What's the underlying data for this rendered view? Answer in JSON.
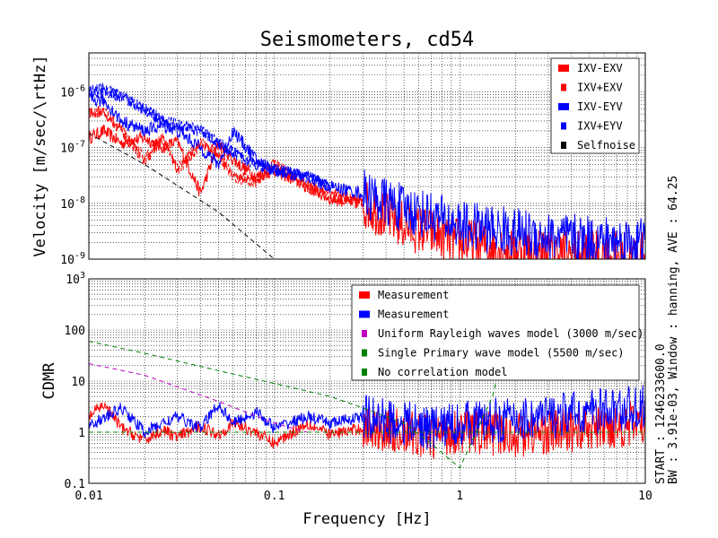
{
  "chart_data": [
    {
      "type": "line",
      "title": "Seismometers, cd54",
      "xlabel": "",
      "ylabel": "Velocity [m/sec/\\rtHz]",
      "xscale": "log",
      "yscale": "log",
      "xlim": [
        0.01,
        10
      ],
      "ylim": [
        1e-09,
        5e-06
      ],
      "y_ticks": [
        "10^-9",
        "10^-8",
        "10^-7",
        "10^-6"
      ],
      "grid": true,
      "legend_position": "top-right",
      "series": [
        {
          "name": "IXV-EXV",
          "color": "#ff0000",
          "style": "solid",
          "x": [
            0.01,
            0.012,
            0.015,
            0.02,
            0.025,
            0.03,
            0.04,
            0.05,
            0.06,
            0.08,
            0.1,
            0.15,
            0.2,
            0.3,
            0.5,
            0.7,
            1,
            2,
            3,
            5,
            10
          ],
          "values": [
            1.5e-07,
            2e-07,
            1.2e-07,
            1.5e-07,
            1e-07,
            1.3e-07,
            1.5e-08,
            1.2e-07,
            6e-08,
            3e-08,
            4e-08,
            2e-08,
            1.2e-08,
            1e-08,
            4e-09,
            3e-09,
            2e-09,
            1.5e-09,
            1.3e-09,
            1.2e-09,
            1.1e-09
          ]
        },
        {
          "name": "IXV+EXV",
          "color": "#ff0000",
          "style": "dashed",
          "x": [
            0.01,
            0.012,
            0.015,
            0.02,
            0.025,
            0.03,
            0.04,
            0.05,
            0.06,
            0.08,
            0.1,
            0.15,
            0.2,
            0.3
          ],
          "values": [
            4e-07,
            4.5e-07,
            2e-07,
            6e-08,
            1.5e-07,
            4e-08,
            1.2e-07,
            8e-08,
            3e-08,
            2.5e-08,
            5e-08,
            2e-08,
            1.5e-08,
            1e-08
          ]
        },
        {
          "name": "IXV-EYV",
          "color": "#0000ff",
          "style": "solid",
          "x": [
            0.01,
            0.012,
            0.015,
            0.02,
            0.025,
            0.03,
            0.04,
            0.05,
            0.06,
            0.08,
            0.1,
            0.15,
            0.2,
            0.3,
            0.5,
            0.7,
            1,
            2,
            3,
            5,
            10
          ],
          "values": [
            7e-07,
            7e-07,
            3e-07,
            2e-07,
            2.5e-07,
            2e-07,
            1e-07,
            5e-08,
            2e-07,
            6e-08,
            4e-08,
            3e-08,
            2e-08,
            1.5e-08,
            8e-09,
            6e-09,
            4e-09,
            3e-09,
            2.5e-09,
            2.2e-09,
            2e-09
          ]
        },
        {
          "name": "IXV+EYV",
          "color": "#0000ff",
          "style": "dashed",
          "x": [
            0.01,
            0.012,
            0.015,
            0.02,
            0.025,
            0.03,
            0.04,
            0.05,
            0.06,
            0.08,
            0.1,
            0.15,
            0.2
          ],
          "values": [
            1e-06,
            1.1e-06,
            8e-07,
            5e-07,
            3e-07,
            2.5e-07,
            2e-07,
            1.2e-07,
            8e-08,
            5e-08,
            4e-08,
            3e-08,
            2e-08
          ]
        },
        {
          "name": "Selfnoise",
          "color": "#000000",
          "style": "dashed",
          "x": [
            0.01,
            0.02,
            0.05,
            0.1
          ],
          "values": [
            1.8e-07,
            5e-08,
            7e-09,
            1e-09
          ]
        }
      ]
    },
    {
      "type": "line",
      "title": "",
      "xlabel": "Frequency [Hz]",
      "ylabel": "CDMR",
      "xscale": "log",
      "yscale": "log",
      "xlim": [
        0.01,
        10
      ],
      "ylim": [
        0.1,
        1000
      ],
      "x_ticks": [
        "0.01",
        "0.1",
        "1",
        "10"
      ],
      "y_ticks": [
        "0.1",
        "1",
        "10",
        "100",
        "10^3"
      ],
      "grid": true,
      "legend_position": "top-right",
      "series": [
        {
          "name": "Measurement",
          "color": "#ff0000",
          "style": "solid",
          "x": [
            0.01,
            0.012,
            0.015,
            0.02,
            0.025,
            0.03,
            0.04,
            0.05,
            0.06,
            0.08,
            0.1,
            0.15,
            0.2,
            0.3,
            0.5,
            0.7,
            1,
            2,
            3,
            5,
            10
          ],
          "values": [
            2,
            3.5,
            1.2,
            0.7,
            1.1,
            0.8,
            1.3,
            0.9,
            1.5,
            1,
            0.6,
            1.5,
            0.9,
            1.2,
            1,
            0.8,
            1.1,
            0.9,
            1,
            1.2,
            1.5
          ]
        },
        {
          "name": "Measurement",
          "color": "#0000ff",
          "style": "solid",
          "x": [
            0.01,
            0.012,
            0.015,
            0.02,
            0.025,
            0.03,
            0.04,
            0.05,
            0.06,
            0.08,
            0.1,
            0.15,
            0.2,
            0.3,
            0.5,
            0.7,
            1,
            2,
            3,
            5,
            10
          ],
          "values": [
            1.5,
            1.8,
            3,
            1,
            1.5,
            2,
            1.2,
            3.5,
            1.5,
            2.5,
            1.2,
            2,
            1.5,
            2,
            1.5,
            1.2,
            1.5,
            1.8,
            2,
            2.5,
            3
          ]
        },
        {
          "name": "Uniform Rayleigh waves model (3000 m/sec)",
          "color": "#bf00bf",
          "style": "dashed",
          "x": [
            0.01,
            0.02,
            0.05,
            0.1,
            0.15
          ],
          "values": [
            22,
            13,
            4,
            1.5,
            1
          ]
        },
        {
          "name": "Single Primary wave model (5500 m/sec)",
          "color": "#008000",
          "style": "dashed",
          "x": [
            0.01,
            0.02,
            0.05,
            0.1,
            0.2,
            0.3,
            0.5,
            0.7,
            1,
            1.5,
            2
          ],
          "values": [
            60,
            35,
            16,
            9,
            5,
            3,
            1.5,
            0.6,
            0.2,
            5,
            300
          ]
        },
        {
          "name": "No correlation model",
          "color": "#008000",
          "style": "dashed",
          "x": [
            0.01,
            10
          ],
          "values": [
            1,
            1
          ]
        }
      ]
    }
  ],
  "side_text": {
    "line1": "BW : 3.91e-03, Window : hanning, AVE : 64.25",
    "line2": "START : 1246233600.0"
  }
}
